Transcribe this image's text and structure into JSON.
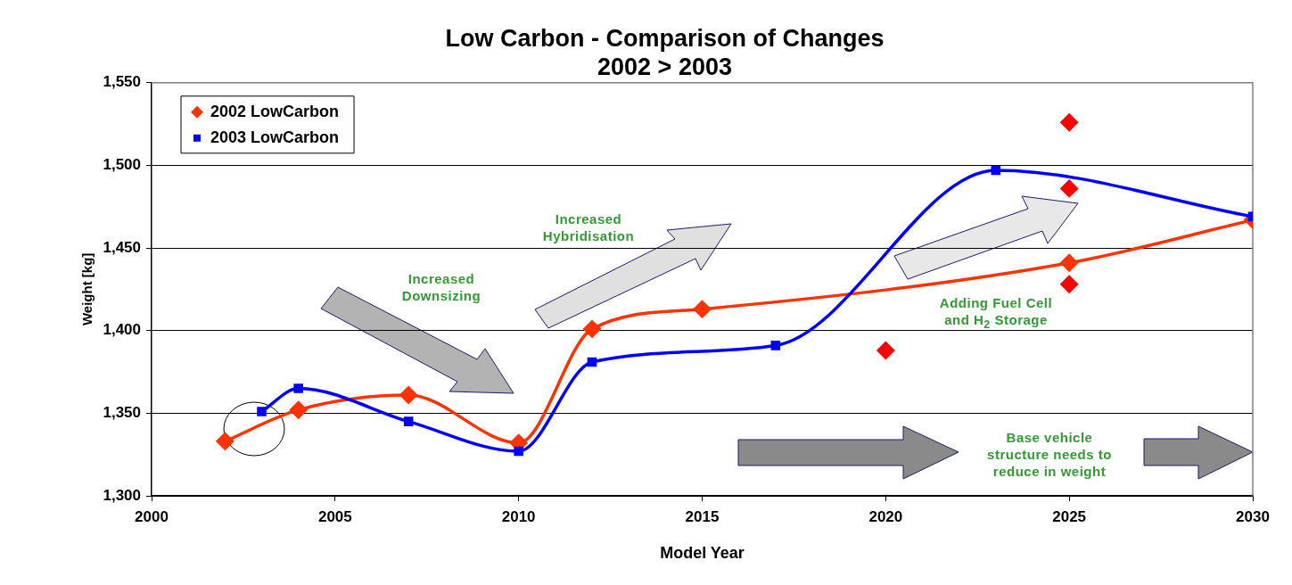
{
  "chart_data": {
    "type": "line",
    "title": "Low Carbon - Comparison of Changes",
    "subtitle": "2002 > 2003",
    "xlabel": "Model Year",
    "ylabel": "Weight [kg]",
    "xlim": [
      2000,
      2030
    ],
    "xticks": [
      2000,
      2005,
      2010,
      2015,
      2020,
      2025,
      2030
    ],
    "ylim": [
      1300,
      1550
    ],
    "yticks": [
      {
        "value": 1300,
        "label": "1,300"
      },
      {
        "value": 1350,
        "label": "1,350"
      },
      {
        "value": 1400,
        "label": "1,400"
      },
      {
        "value": 1450,
        "label": "1,450"
      },
      {
        "value": 1500,
        "label": "1,500"
      },
      {
        "value": 1550,
        "label": "1,550"
      }
    ],
    "grid": "y",
    "legend": "top left",
    "annotations": [
      "Increased Downsizing",
      "Increased Hybridisation",
      "Adding Fuel Cell and H$_{2}$ Storage",
      "Base vehicle structure needs to reduce in weight"
    ],
    "series": [
      {
        "name": "2002 LowCarbon",
        "color": "#ff3300",
        "marker": "diamond",
        "x": [
          2002,
          2004,
          2007,
          2010,
          2012,
          2015,
          2025,
          2030
        ],
        "values": [
          1333,
          1352,
          1361,
          1332,
          1401,
          1413,
          1441,
          1467
        ]
      },
      {
        "type": "scatter",
        "color": "#ff0000",
        "marker": "diamond",
        "x": [
          2020,
          2025,
          2025,
          2025
        ],
        "values": [
          1388,
          1526,
          1486,
          1428
        ]
      },
      {
        "name": "2003 LowCarbon",
        "color": "#0000ff",
        "marker": "square",
        "x": [
          2003,
          2004,
          2007,
          2010,
          2012,
          2017,
          2023,
          2030
        ],
        "values": [
          1351,
          1365,
          1345,
          1327,
          1381,
          1391,
          1497,
          1469
        ]
      }
    ]
  }
}
